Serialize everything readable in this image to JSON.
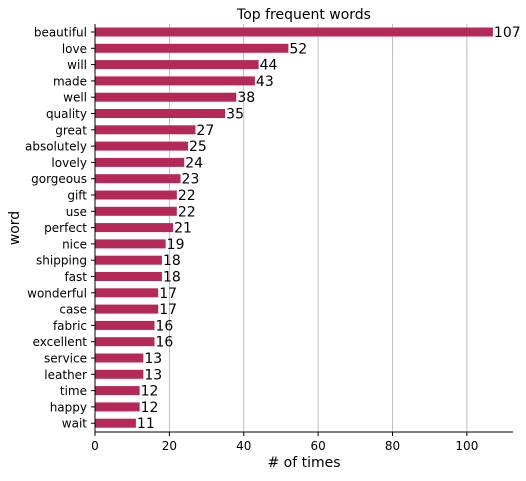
{
  "chart_data": {
    "type": "bar",
    "orientation": "horizontal",
    "title": "Top frequent words",
    "xlabel": "# of times",
    "ylabel": "word",
    "categories": [
      "beautiful",
      "love",
      "will",
      "made",
      "well",
      "quality",
      "great",
      "absolutely",
      "lovely",
      "gorgeous",
      "gift",
      "use",
      "perfect",
      "nice",
      "shipping",
      "fast",
      "wonderful",
      "case",
      "fabric",
      "excellent",
      "service",
      "leather",
      "time",
      "happy",
      "wait"
    ],
    "values": [
      107,
      52,
      44,
      43,
      38,
      35,
      27,
      25,
      24,
      23,
      22,
      22,
      21,
      19,
      18,
      18,
      17,
      17,
      16,
      16,
      13,
      13,
      12,
      12,
      11
    ],
    "xlim": [
      0,
      112.4
    ],
    "xticks": [
      0,
      20,
      40,
      60,
      80,
      100
    ],
    "grid": "vertical",
    "bar_color": "#b5295a",
    "data_labels": true
  }
}
